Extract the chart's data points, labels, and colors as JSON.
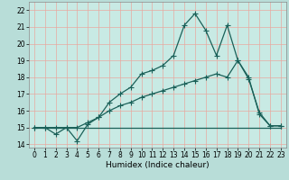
{
  "title": "",
  "xlabel": "Humidex (Indice chaleur)",
  "xlim": [
    -0.5,
    23.5
  ],
  "ylim": [
    13.8,
    22.5
  ],
  "background_color": "#b8ddd8",
  "plot_bg_color": "#c8eae4",
  "grid_color": "#e8a8a0",
  "line_color": "#1a6058",
  "line1_x": [
    0,
    1,
    2,
    3,
    4,
    5,
    6,
    7,
    8,
    9,
    10,
    11,
    12,
    13,
    14,
    15,
    16,
    17,
    18,
    19,
    20,
    21,
    22,
    23
  ],
  "line1_y": [
    15.0,
    15.0,
    14.6,
    15.0,
    14.2,
    15.2,
    15.6,
    16.5,
    17.0,
    17.4,
    18.2,
    18.4,
    18.7,
    19.3,
    21.1,
    21.8,
    20.8,
    19.3,
    21.1,
    19.0,
    17.9,
    15.9,
    15.1,
    15.1
  ],
  "line2_x": [
    0,
    1,
    2,
    3,
    4,
    5,
    6,
    7,
    8,
    9,
    10,
    11,
    12,
    13,
    14,
    15,
    16,
    17,
    18,
    19,
    20,
    21,
    22,
    23
  ],
  "line2_y": [
    15.0,
    15.0,
    15.0,
    15.0,
    15.0,
    15.3,
    15.6,
    16.0,
    16.3,
    16.5,
    16.8,
    17.0,
    17.2,
    17.4,
    17.6,
    17.8,
    18.0,
    18.2,
    18.0,
    19.0,
    18.0,
    15.8,
    15.1,
    15.1
  ],
  "line3_x": [
    0,
    19,
    23
  ],
  "line3_y": [
    15.0,
    15.0,
    15.0
  ],
  "yticks": [
    14,
    15,
    16,
    17,
    18,
    19,
    20,
    21,
    22
  ],
  "xticks": [
    0,
    1,
    2,
    3,
    4,
    5,
    6,
    7,
    8,
    9,
    10,
    11,
    12,
    13,
    14,
    15,
    16,
    17,
    18,
    19,
    20,
    21,
    22,
    23
  ],
  "marker": "+",
  "marker_size": 4,
  "linewidth": 0.9,
  "tick_fontsize": 5.5,
  "label_fontsize": 6.5
}
